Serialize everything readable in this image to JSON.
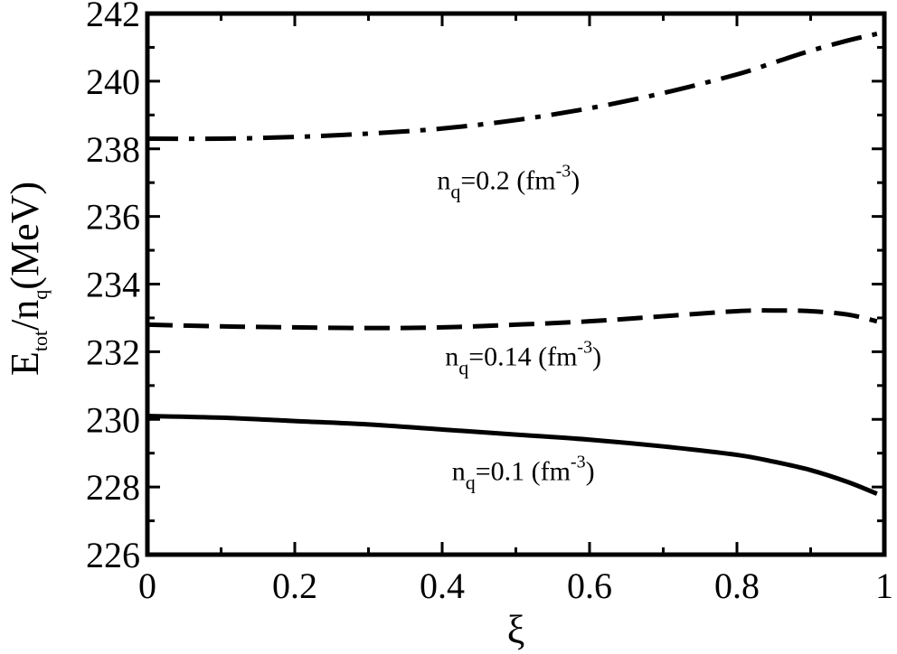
{
  "chart_data": {
    "type": "line",
    "title": "",
    "xlabel": "ξ",
    "ylabel": {
      "main1": "E",
      "sub1": "tot",
      "main2": "/n",
      "sub2": "q",
      "main3": "(MeV)"
    },
    "xlim": [
      0,
      1
    ],
    "ylim": [
      226,
      242
    ],
    "xticks": [
      0,
      0.2,
      0.4,
      0.6,
      0.8,
      1
    ],
    "xtick_labels": [
      "0",
      "0.2",
      "0.4",
      "0.6",
      "0.8",
      "1"
    ],
    "yticks": [
      226,
      228,
      230,
      232,
      234,
      236,
      238,
      240,
      242
    ],
    "ytick_labels": [
      "226",
      "228",
      "230",
      "232",
      "234",
      "236",
      "238",
      "240",
      "242"
    ],
    "grid": false,
    "series": [
      {
        "style": "solid",
        "x": [
          0,
          0.1,
          0.2,
          0.3,
          0.4,
          0.5,
          0.6,
          0.7,
          0.8,
          0.85,
          0.9,
          0.95,
          0.99
        ],
        "y": [
          230.1,
          230.05,
          229.95,
          229.85,
          229.7,
          229.55,
          229.4,
          229.2,
          228.95,
          228.75,
          228.5,
          228.15,
          227.8
        ]
      },
      {
        "style": "dashed",
        "x": [
          0,
          0.1,
          0.2,
          0.3,
          0.4,
          0.5,
          0.6,
          0.7,
          0.8,
          0.85,
          0.9,
          0.95,
          0.99
        ],
        "y": [
          232.8,
          232.75,
          232.72,
          232.7,
          232.72,
          232.8,
          232.9,
          233.05,
          233.2,
          233.22,
          233.2,
          233.1,
          232.9
        ]
      },
      {
        "style": "dashdot",
        "x": [
          0,
          0.1,
          0.2,
          0.3,
          0.4,
          0.5,
          0.6,
          0.7,
          0.8,
          0.85,
          0.9,
          0.95,
          0.99
        ],
        "y": [
          238.3,
          238.3,
          238.35,
          238.45,
          238.6,
          238.85,
          239.2,
          239.65,
          240.2,
          240.55,
          240.9,
          241.2,
          241.4
        ]
      }
    ],
    "annotations": [
      {
        "pre": "n",
        "sub": "q",
        "mid": "=0.2 (fm",
        "sup": "-3",
        "post": ")",
        "x": 0.49,
        "y": 236.8
      },
      {
        "pre": "n",
        "sub": "q",
        "mid": "=0.14 (fm",
        "sup": "-3",
        "post": ")",
        "x": 0.51,
        "y": 231.6
      },
      {
        "pre": "n",
        "sub": "q",
        "mid": "=0.1 (fm",
        "sup": "-3",
        "post": ")",
        "x": 0.51,
        "y": 228.2
      }
    ]
  }
}
